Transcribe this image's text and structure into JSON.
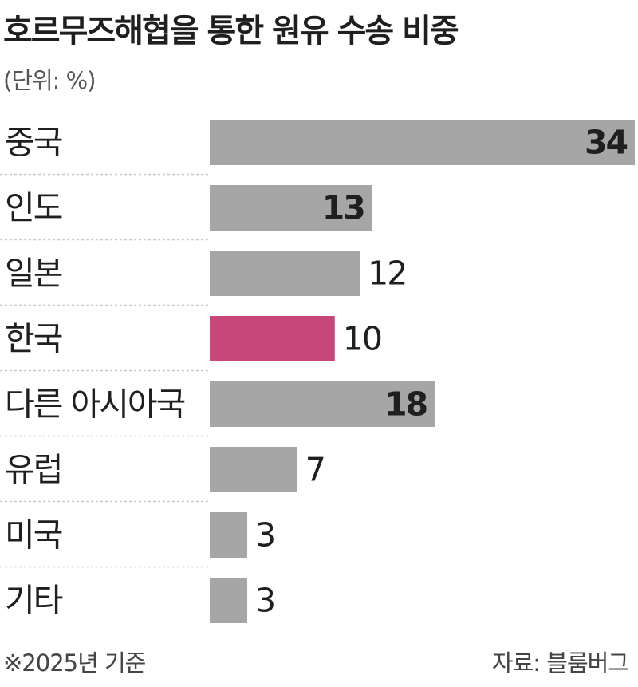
{
  "header": {
    "title": "호르무즈해협을 통한 원유 수송 비중",
    "unit": "(단위: %)"
  },
  "footer": {
    "note": "※2025년 기준",
    "source": "자료: 블룸버그"
  },
  "colors": {
    "bar": "#a6a6a6",
    "highlight_bar": "#c8477a",
    "inner_value_text": "#ffffff",
    "separator": "#c8c8c8"
  },
  "chart_data": {
    "type": "bar",
    "orientation": "horizontal",
    "categories": [
      "중국",
      "인도",
      "일본",
      "한국",
      "다른 아시아국",
      "유럽",
      "미국",
      "기타"
    ],
    "values": [
      34,
      13,
      12,
      10,
      18,
      7,
      3,
      3
    ],
    "value_labels": [
      "34",
      "13",
      "12",
      "10",
      "18",
      "7",
      "3",
      "3"
    ],
    "highlight_category": "한국",
    "xlim": [
      0,
      34
    ],
    "grid": false,
    "legend": "none"
  }
}
